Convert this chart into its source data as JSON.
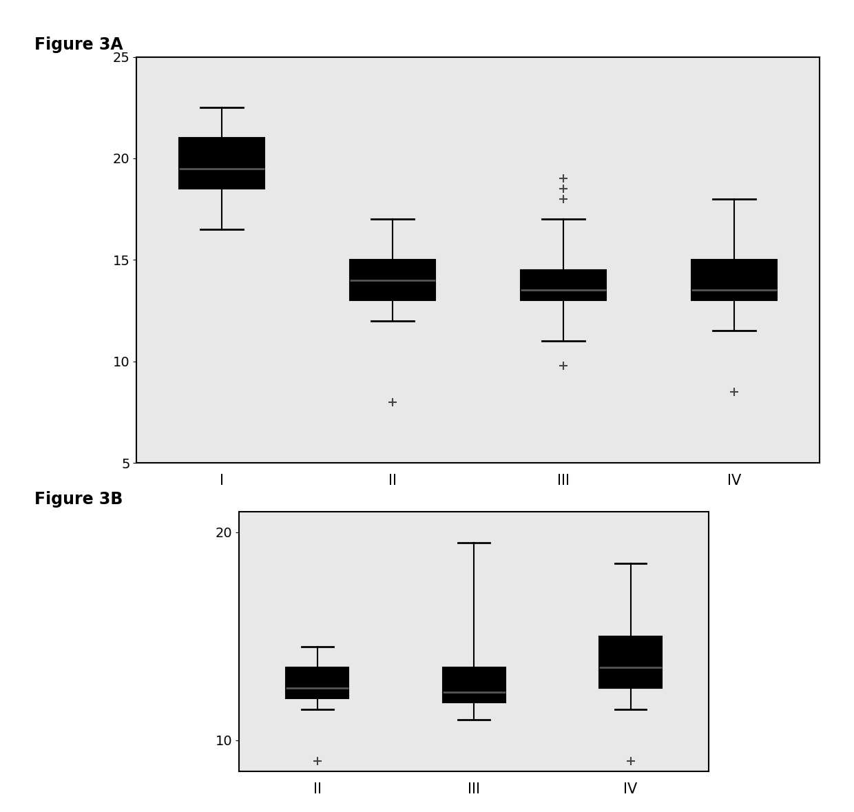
{
  "fig3a_title": "Figure 3A",
  "fig3b_title": "Figure 3B",
  "fig3a_categories": [
    "I",
    "II",
    "III",
    "IV"
  ],
  "fig3b_categories": [
    "II",
    "III",
    "IV"
  ],
  "fig3a_boxes": [
    {
      "whislo": 16.5,
      "q1": 18.5,
      "med": 19.5,
      "q3": 21.0,
      "whishi": 22.5,
      "fliers": []
    },
    {
      "whislo": 12.0,
      "q1": 13.0,
      "med": 14.0,
      "q3": 15.0,
      "whishi": 17.0,
      "fliers": [
        8.0
      ]
    },
    {
      "whislo": 11.0,
      "q1": 13.0,
      "med": 13.5,
      "q3": 14.5,
      "whishi": 17.0,
      "fliers": [
        19.0,
        18.5,
        18.0,
        9.8
      ]
    },
    {
      "whislo": 11.5,
      "q1": 13.0,
      "med": 13.5,
      "q3": 15.0,
      "whishi": 18.0,
      "fliers": [
        8.5
      ]
    }
  ],
  "fig3b_boxes": [
    {
      "whislo": 11.5,
      "q1": 12.0,
      "med": 12.5,
      "q3": 13.5,
      "whishi": 14.5,
      "fliers": [
        9.0
      ]
    },
    {
      "whislo": 11.0,
      "q1": 11.8,
      "med": 12.3,
      "q3": 13.5,
      "whishi": 19.5,
      "fliers": []
    },
    {
      "whislo": 11.5,
      "q1": 12.5,
      "med": 13.5,
      "q3": 15.0,
      "whishi": 18.5,
      "fliers": [
        9.0
      ]
    }
  ],
  "fig3a_ylim": [
    5,
    25
  ],
  "fig3a_yticks": [
    5,
    10,
    15,
    20,
    25
  ],
  "fig3b_ylim": [
    8.5,
    21
  ],
  "fig3b_yticks": [
    10,
    20
  ],
  "box_facecolor": "#ffffff",
  "box_edgecolor": "#000000",
  "median_color": "#555555",
  "whisker_color": "#000000",
  "flier_marker": "+",
  "flier_color": "#444444",
  "fig_bg_color": "#ffffff",
  "plot_bg_color": "#e8e8e8",
  "title_fontsize": 17,
  "tick_fontsize": 14,
  "label_fontsize": 15
}
